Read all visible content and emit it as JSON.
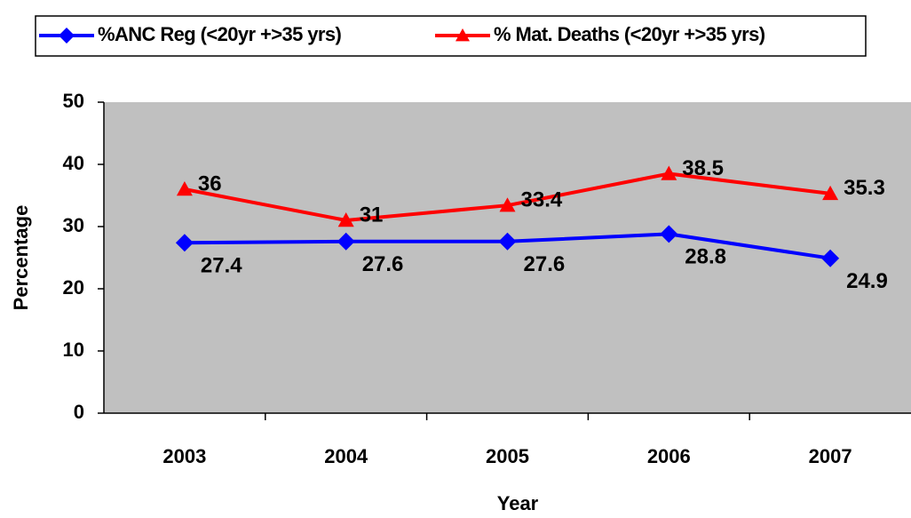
{
  "chart_data": {
    "type": "line",
    "x_label": "Year",
    "y_label": "Percentage",
    "categories": [
      "2003",
      "2004",
      "2005",
      "2006",
      "2007"
    ],
    "series": [
      {
        "name": "%ANC Reg (<20yr +>35 yrs)",
        "color": "#0000ff",
        "marker": "diamond",
        "values": [
          27.4,
          27.6,
          27.6,
          28.8,
          24.9
        ]
      },
      {
        "name": "% Mat. Deaths (<20yr +>35 yrs)",
        "color": "#ff0000",
        "marker": "triangle",
        "values": [
          36,
          31,
          33.4,
          38.5,
          35.3
        ]
      }
    ],
    "ylim": [
      0,
      50
    ],
    "yticks": [
      0,
      10,
      20,
      30,
      40,
      50
    ],
    "legend": "top",
    "plot_background": "#c0c0c0"
  }
}
